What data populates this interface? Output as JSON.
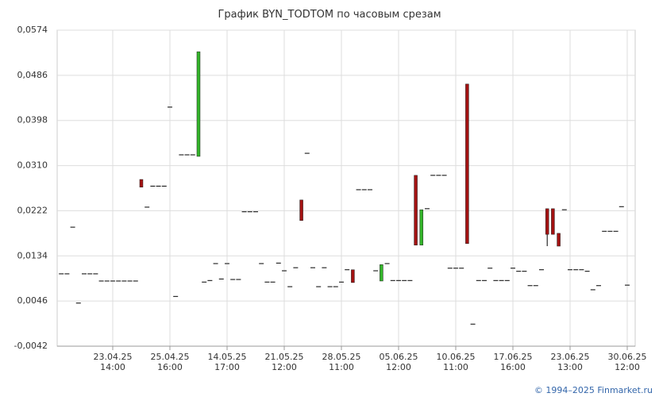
{
  "chart_data": {
    "type": "candlestick",
    "title": "График BYN_TODTOM по часовым срезам",
    "footer": "© 1994–2025 Finmarket.ru",
    "up_color": "#33b52a",
    "down_color": "#a31212",
    "flat_color": "#000000",
    "grid": true,
    "ylim": [
      -0.0042,
      0.0574
    ],
    "yticks": [
      {
        "value": -0.0042,
        "label": "-0,0042"
      },
      {
        "value": 0.0046,
        "label": "0,0046"
      },
      {
        "value": 0.0134,
        "label": "0,0134"
      },
      {
        "value": 0.0222,
        "label": "0,0222"
      },
      {
        "value": 0.031,
        "label": "0,0310"
      },
      {
        "value": 0.0398,
        "label": "0,0398"
      },
      {
        "value": 0.0486,
        "label": "0,0486"
      },
      {
        "value": 0.0574,
        "label": "0,0574"
      }
    ],
    "xlim": [
      -0.72,
      100.39
    ],
    "xticks": [
      {
        "value": 9,
        "label": "23.04.25\n14:00"
      },
      {
        "value": 19,
        "label": "25.04.25\n16:00"
      },
      {
        "value": 29,
        "label": "14.05.25\n17:00"
      },
      {
        "value": 39,
        "label": "21.05.25\n12:00"
      },
      {
        "value": 49,
        "label": "28.05.25\n11:00"
      },
      {
        "value": 59,
        "label": "05.06.25\n12:00"
      },
      {
        "value": 69,
        "label": "10.06.25\n11:00"
      },
      {
        "value": 79,
        "label": "17.06.25\n16:00"
      },
      {
        "value": 89,
        "label": "23.06.25\n13:00"
      },
      {
        "value": 99,
        "label": "30.06.25\n12:00"
      }
    ],
    "open": [
      0.0099,
      0.0099,
      0.019,
      0.0042,
      0.0099,
      0.0099,
      0.0099,
      0.0085,
      0.0085,
      0.0085,
      0.0085,
      0.0085,
      0.0085,
      0.0085,
      0.0283,
      0.0229,
      0.027,
      0.027,
      0.027,
      0.0424,
      0.0055,
      0.0331,
      0.0331,
      0.0331,
      0.0328,
      0.0083,
      0.0086,
      0.0119,
      0.0089,
      0.0119,
      0.0088,
      0.0088,
      0.022,
      0.022,
      0.022,
      0.0119,
      0.0083,
      0.0083,
      0.012,
      0.0105,
      0.0074,
      0.0111,
      0.0243,
      0.0334,
      0.0111,
      0.0074,
      0.0111,
      0.0074,
      0.0074,
      0.0083,
      0.0107,
      0.0107,
      0.0263,
      0.0263,
      0.0263,
      0.0105,
      0.0085,
      0.0119,
      0.0086,
      0.0086,
      0.0086,
      0.0086,
      0.0291,
      0.0155,
      0.0226,
      0.0291,
      0.0291,
      0.0291,
      0.011,
      0.011,
      0.011,
      0.0469,
      0.0001,
      0.0086,
      0.0086,
      0.011,
      0.0086,
      0.0086,
      0.0086,
      0.011,
      0.0104,
      0.0104,
      0.0076,
      0.0076,
      0.0107,
      0.0226,
      0.0226,
      0.0178,
      0.0224,
      0.0107,
      0.0107,
      0.0107,
      0.0104,
      0.0068,
      0.0076,
      0.0182,
      0.0182,
      0.0182,
      0.023,
      0.0077
    ],
    "high": [
      0.0099,
      0.0099,
      0.019,
      0.0042,
      0.0099,
      0.0099,
      0.0099,
      0.0085,
      0.0085,
      0.0085,
      0.0085,
      0.0085,
      0.0085,
      0.0085,
      0.0283,
      0.0229,
      0.027,
      0.027,
      0.027,
      0.0424,
      0.0055,
      0.0331,
      0.0331,
      0.0331,
      0.0532,
      0.0083,
      0.0086,
      0.0119,
      0.0089,
      0.0119,
      0.0088,
      0.0088,
      0.022,
      0.022,
      0.022,
      0.0119,
      0.0083,
      0.0083,
      0.012,
      0.0105,
      0.0074,
      0.0111,
      0.0243,
      0.0334,
      0.0111,
      0.0074,
      0.0111,
      0.0074,
      0.0074,
      0.0083,
      0.0107,
      0.0107,
      0.0263,
      0.0263,
      0.0263,
      0.0105,
      0.0117,
      0.0119,
      0.0086,
      0.0086,
      0.0086,
      0.0086,
      0.0291,
      0.0224,
      0.0226,
      0.0291,
      0.0291,
      0.0291,
      0.011,
      0.011,
      0.011,
      0.0469,
      0.0001,
      0.0086,
      0.0086,
      0.011,
      0.0086,
      0.0086,
      0.0086,
      0.011,
      0.0104,
      0.0104,
      0.0076,
      0.0076,
      0.0107,
      0.0226,
      0.0226,
      0.0178,
      0.0224,
      0.0107,
      0.0107,
      0.0107,
      0.0104,
      0.0068,
      0.0076,
      0.0182,
      0.0182,
      0.0182,
      0.023,
      0.0077
    ],
    "low": [
      0.0099,
      0.0099,
      0.019,
      0.0042,
      0.0099,
      0.0099,
      0.0099,
      0.0085,
      0.0085,
      0.0085,
      0.0085,
      0.0085,
      0.0085,
      0.0085,
      0.0268,
      0.0229,
      0.027,
      0.027,
      0.027,
      0.0424,
      0.0055,
      0.0331,
      0.0331,
      0.0331,
      0.0328,
      0.0083,
      0.0086,
      0.0119,
      0.0089,
      0.0119,
      0.0088,
      0.0088,
      0.022,
      0.022,
      0.022,
      0.0119,
      0.0083,
      0.0083,
      0.012,
      0.0105,
      0.0074,
      0.0111,
      0.0203,
      0.0334,
      0.0111,
      0.0074,
      0.0111,
      0.0074,
      0.0074,
      0.0083,
      0.0107,
      0.0082,
      0.0263,
      0.0263,
      0.0263,
      0.0105,
      0.0085,
      0.0119,
      0.0086,
      0.0086,
      0.0086,
      0.0086,
      0.0155,
      0.0155,
      0.0226,
      0.0291,
      0.0291,
      0.0291,
      0.011,
      0.011,
      0.011,
      0.0158,
      0.0001,
      0.0086,
      0.0086,
      0.011,
      0.0086,
      0.0086,
      0.0086,
      0.011,
      0.0104,
      0.0104,
      0.0076,
      0.0076,
      0.0107,
      0.0153,
      0.0176,
      0.0153,
      0.0224,
      0.0107,
      0.0107,
      0.0107,
      0.0104,
      0.0068,
      0.0076,
      0.0182,
      0.0182,
      0.0182,
      0.023,
      0.0077
    ],
    "close": [
      0.0099,
      0.0099,
      0.019,
      0.0042,
      0.0099,
      0.0099,
      0.0099,
      0.0085,
      0.0085,
      0.0085,
      0.0085,
      0.0085,
      0.0085,
      0.0085,
      0.0268,
      0.0229,
      0.027,
      0.027,
      0.027,
      0.0424,
      0.0055,
      0.0331,
      0.0331,
      0.0331,
      0.0532,
      0.0083,
      0.0086,
      0.0119,
      0.0089,
      0.0119,
      0.0088,
      0.0088,
      0.022,
      0.022,
      0.022,
      0.0119,
      0.0083,
      0.0083,
      0.012,
      0.0105,
      0.0074,
      0.0111,
      0.0203,
      0.0334,
      0.0111,
      0.0074,
      0.0111,
      0.0074,
      0.0074,
      0.0083,
      0.0107,
      0.0082,
      0.0263,
      0.0263,
      0.0263,
      0.0105,
      0.0117,
      0.0119,
      0.0086,
      0.0086,
      0.0086,
      0.0086,
      0.0155,
      0.0224,
      0.0226,
      0.0291,
      0.0291,
      0.0291,
      0.011,
      0.011,
      0.011,
      0.0158,
      0.0001,
      0.0086,
      0.0086,
      0.011,
      0.0086,
      0.0086,
      0.0086,
      0.011,
      0.0104,
      0.0104,
      0.0076,
      0.0076,
      0.0107,
      0.0176,
      0.0176,
      0.0153,
      0.0224,
      0.0107,
      0.0107,
      0.0107,
      0.0104,
      0.0068,
      0.0076,
      0.0182,
      0.0182,
      0.0182,
      0.023,
      0.0077
    ]
  }
}
